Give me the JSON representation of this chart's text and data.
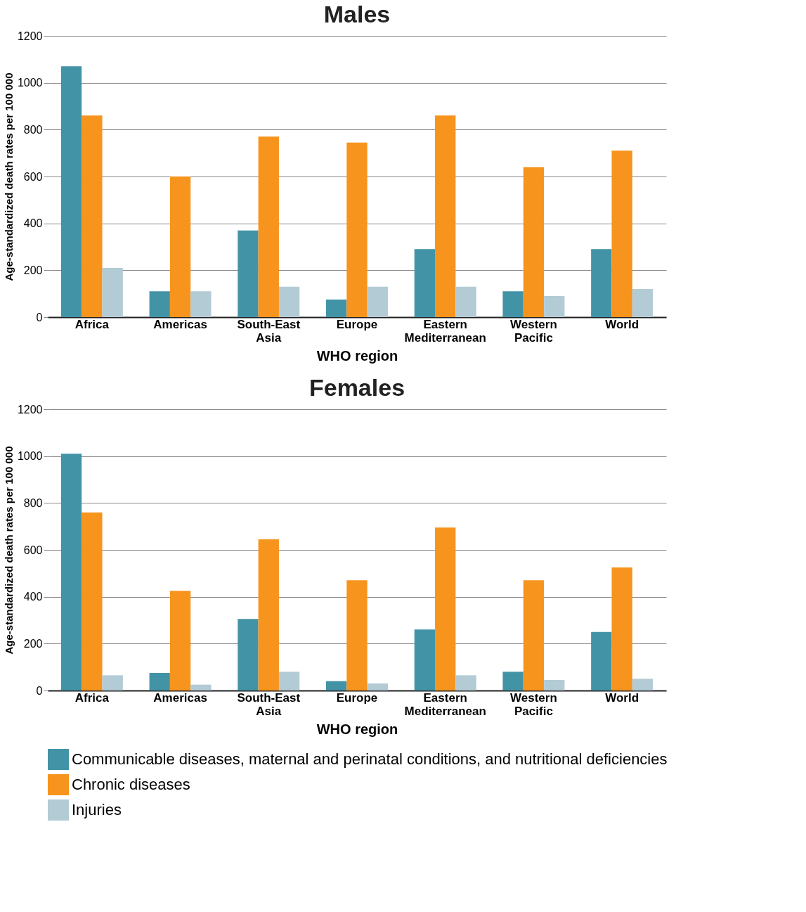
{
  "chart_data": [
    {
      "type": "bar",
      "title": "Males",
      "xlabel": "WHO region",
      "ylabel": "Age-standardized death rates per 100 000",
      "categories": [
        "Africa",
        "Americas",
        "South-East Asia",
        "Europe",
        "Eastern Mediterranean",
        "Western Pacific",
        "World"
      ],
      "series": [
        {
          "name": "Communicable diseases, maternal and perinatal conditions, and nutritional deficiencies",
          "color": "#4393a6",
          "values": [
            1070,
            110,
            370,
            75,
            290,
            110,
            290
          ]
        },
        {
          "name": "Chronic diseases",
          "color": "#f7941d",
          "values": [
            860,
            600,
            770,
            745,
            860,
            640,
            710
          ]
        },
        {
          "name": "Injuries",
          "color": "#b3cbd5",
          "values": [
            210,
            110,
            130,
            130,
            130,
            90,
            120
          ]
        }
      ],
      "ylim": [
        0,
        1200
      ],
      "yticks": [
        0,
        200,
        400,
        600,
        800,
        1000,
        1200
      ],
      "grid": "y",
      "legend": "bottom"
    },
    {
      "type": "bar",
      "title": "Females",
      "xlabel": "WHO region",
      "ylabel": "Age-standardized death rates per 100 000",
      "categories": [
        "Africa",
        "Americas",
        "South-East Asia",
        "Europe",
        "Eastern Mediterranean",
        "Western Pacific",
        "World"
      ],
      "series": [
        {
          "name": "Communicable diseases, maternal and perinatal conditions, and nutritional deficiencies",
          "color": "#4393a6",
          "values": [
            1010,
            75,
            305,
            40,
            260,
            80,
            250
          ]
        },
        {
          "name": "Chronic diseases",
          "color": "#f7941d",
          "values": [
            760,
            425,
            645,
            470,
            695,
            470,
            525
          ]
        },
        {
          "name": "Injuries",
          "color": "#b3cbd5",
          "values": [
            65,
            25,
            80,
            30,
            65,
            45,
            50
          ]
        }
      ],
      "ylim": [
        0,
        1200
      ],
      "yticks": [
        0,
        200,
        400,
        600,
        800,
        1000,
        1200
      ],
      "grid": "y",
      "legend": "bottom"
    }
  ]
}
